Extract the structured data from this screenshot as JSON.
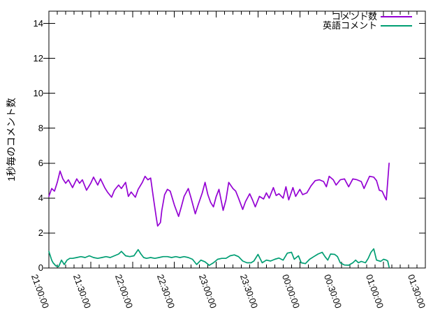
{
  "colors": {
    "background": "#ffffff",
    "frame": "#000000",
    "text": "#000000",
    "series1": "#9400d3",
    "series2": "#009e73"
  },
  "chart_data": {
    "type": "line",
    "title": "",
    "xlabel": "",
    "ylabel": "1秒毎のコメント数",
    "ylim": [
      0,
      14.7
    ],
    "yticks": [
      0,
      2,
      4,
      6,
      8,
      10,
      12,
      14
    ],
    "grid": false,
    "legend_position": "top-right-inside",
    "x_axis": {
      "unit": "time HH:MM:SS",
      "note": "series x values are minutes after 21:00:00",
      "range_minutes": [
        0,
        270
      ],
      "major_tick_minutes": 30,
      "minor_tick_minutes": 6,
      "label_rotation_deg": 70,
      "tick_labels": [
        "21:00:00",
        "21:30:00",
        "22:00:00",
        "22:30:00",
        "23:00:00",
        "23:30:00",
        "00:00:00",
        "00:30:00",
        "01:00:00",
        "01:30:00"
      ]
    },
    "series": [
      {
        "name": "コメント数",
        "color": "#9400d3",
        "points": [
          [
            0,
            4.1
          ],
          [
            2,
            4.55
          ],
          [
            4,
            4.4
          ],
          [
            6,
            4.9
          ],
          [
            8,
            5.55
          ],
          [
            10,
            5.1
          ],
          [
            12,
            4.85
          ],
          [
            14,
            5.05
          ],
          [
            17,
            4.6
          ],
          [
            20,
            5.1
          ],
          [
            22,
            4.85
          ],
          [
            24,
            5.05
          ],
          [
            27,
            4.45
          ],
          [
            30,
            4.85
          ],
          [
            32,
            5.2
          ],
          [
            35,
            4.75
          ],
          [
            37,
            5.1
          ],
          [
            40,
            4.6
          ],
          [
            42,
            4.35
          ],
          [
            45,
            4.05
          ],
          [
            47,
            4.45
          ],
          [
            50,
            4.75
          ],
          [
            52,
            4.55
          ],
          [
            55,
            4.9
          ],
          [
            57,
            4.1
          ],
          [
            59,
            4.35
          ],
          [
            62,
            4.05
          ],
          [
            64,
            4.5
          ],
          [
            67,
            4.9
          ],
          [
            69,
            5.25
          ],
          [
            71,
            5.05
          ],
          [
            73,
            5.15
          ],
          [
            75,
            4.0
          ],
          [
            77,
            2.9
          ],
          [
            78,
            2.4
          ],
          [
            80,
            2.6
          ],
          [
            81,
            3.3
          ],
          [
            83,
            4.2
          ],
          [
            85,
            4.5
          ],
          [
            87,
            4.4
          ],
          [
            90,
            3.6
          ],
          [
            93,
            2.95
          ],
          [
            95,
            3.5
          ],
          [
            97,
            4.1
          ],
          [
            100,
            4.55
          ],
          [
            102,
            4.0
          ],
          [
            105,
            3.1
          ],
          [
            107,
            3.6
          ],
          [
            110,
            4.3
          ],
          [
            112,
            4.9
          ],
          [
            114,
            4.2
          ],
          [
            116,
            3.75
          ],
          [
            118,
            3.5
          ],
          [
            120,
            4.1
          ],
          [
            122,
            4.5
          ],
          [
            125,
            3.3
          ],
          [
            127,
            3.9
          ],
          [
            129,
            4.9
          ],
          [
            132,
            4.55
          ],
          [
            134,
            4.4
          ],
          [
            136,
            4.0
          ],
          [
            139,
            3.35
          ],
          [
            141,
            3.8
          ],
          [
            144,
            4.25
          ],
          [
            146,
            3.9
          ],
          [
            148,
            3.5
          ],
          [
            151,
            4.1
          ],
          [
            154,
            3.95
          ],
          [
            156,
            4.3
          ],
          [
            158,
            4.0
          ],
          [
            161,
            4.6
          ],
          [
            163,
            4.15
          ],
          [
            165,
            4.25
          ],
          [
            168,
            4.0
          ],
          [
            170,
            4.65
          ],
          [
            172,
            3.9
          ],
          [
            175,
            4.6
          ],
          [
            177,
            4.1
          ],
          [
            180,
            4.5
          ],
          [
            182,
            4.2
          ],
          [
            185,
            4.3
          ],
          [
            188,
            4.7
          ],
          [
            191,
            5.0
          ],
          [
            194,
            5.05
          ],
          [
            197,
            4.95
          ],
          [
            199,
            4.65
          ],
          [
            201,
            5.25
          ],
          [
            204,
            5.05
          ],
          [
            206,
            4.75
          ],
          [
            209,
            5.05
          ],
          [
            212,
            5.1
          ],
          [
            215,
            4.65
          ],
          [
            218,
            5.1
          ],
          [
            221,
            5.05
          ],
          [
            224,
            4.95
          ],
          [
            226,
            4.55
          ],
          [
            230,
            5.25
          ],
          [
            233,
            5.2
          ],
          [
            235,
            5.0
          ],
          [
            237,
            4.45
          ],
          [
            239,
            4.4
          ],
          [
            241,
            4.05
          ],
          [
            242,
            3.9
          ],
          [
            244,
            6.0
          ]
        ]
      },
      {
        "name": "英語コメント",
        "color": "#009e73",
        "points": [
          [
            0,
            0.95
          ],
          [
            2,
            0.45
          ],
          [
            3,
            0.3
          ],
          [
            5,
            0.12
          ],
          [
            7,
            0.08
          ],
          [
            9,
            0.45
          ],
          [
            11,
            0.2
          ],
          [
            13,
            0.45
          ],
          [
            15,
            0.55
          ],
          [
            17,
            0.55
          ],
          [
            20,
            0.6
          ],
          [
            23,
            0.65
          ],
          [
            26,
            0.6
          ],
          [
            29,
            0.7
          ],
          [
            32,
            0.6
          ],
          [
            35,
            0.55
          ],
          [
            38,
            0.6
          ],
          [
            41,
            0.65
          ],
          [
            44,
            0.6
          ],
          [
            47,
            0.7
          ],
          [
            50,
            0.8
          ],
          [
            52,
            0.95
          ],
          [
            55,
            0.7
          ],
          [
            58,
            0.65
          ],
          [
            61,
            0.7
          ],
          [
            64,
            1.05
          ],
          [
            66,
            0.8
          ],
          [
            68,
            0.6
          ],
          [
            70,
            0.55
          ],
          [
            73,
            0.6
          ],
          [
            76,
            0.55
          ],
          [
            79,
            0.6
          ],
          [
            82,
            0.65
          ],
          [
            85,
            0.65
          ],
          [
            88,
            0.6
          ],
          [
            91,
            0.65
          ],
          [
            94,
            0.6
          ],
          [
            97,
            0.65
          ],
          [
            100,
            0.6
          ],
          [
            103,
            0.5
          ],
          [
            106,
            0.2
          ],
          [
            109,
            0.45
          ],
          [
            112,
            0.35
          ],
          [
            115,
            0.15
          ],
          [
            118,
            0.3
          ],
          [
            121,
            0.5
          ],
          [
            124,
            0.55
          ],
          [
            127,
            0.55
          ],
          [
            130,
            0.7
          ],
          [
            133,
            0.75
          ],
          [
            136,
            0.65
          ],
          [
            139,
            0.4
          ],
          [
            142,
            0.3
          ],
          [
            145,
            0.3
          ],
          [
            147,
            0.4
          ],
          [
            150,
            0.78
          ],
          [
            153,
            0.3
          ],
          [
            156,
            0.45
          ],
          [
            159,
            0.4
          ],
          [
            162,
            0.5
          ],
          [
            165,
            0.57
          ],
          [
            168,
            0.45
          ],
          [
            171,
            0.85
          ],
          [
            174,
            0.9
          ],
          [
            176,
            0.5
          ],
          [
            179,
            0.7
          ],
          [
            181,
            0.3
          ],
          [
            184,
            0.25
          ],
          [
            187,
            0.5
          ],
          [
            190,
            0.65
          ],
          [
            193,
            0.8
          ],
          [
            196,
            0.9
          ],
          [
            198,
            0.65
          ],
          [
            200,
            0.45
          ],
          [
            202,
            0.8
          ],
          [
            205,
            0.78
          ],
          [
            207,
            0.65
          ],
          [
            209,
            0.3
          ],
          [
            212,
            0.17
          ],
          [
            215,
            0.16
          ],
          [
            218,
            0.3
          ],
          [
            220,
            0.45
          ],
          [
            222,
            0.3
          ],
          [
            224,
            0.38
          ],
          [
            227,
            0.3
          ],
          [
            229,
            0.55
          ],
          [
            231,
            0.9
          ],
          [
            233,
            1.1
          ],
          [
            235,
            0.45
          ],
          [
            238,
            0.38
          ],
          [
            240,
            0.5
          ],
          [
            242,
            0.45
          ],
          [
            243,
            0.4
          ],
          [
            244,
            0.05
          ]
        ]
      }
    ]
  }
}
